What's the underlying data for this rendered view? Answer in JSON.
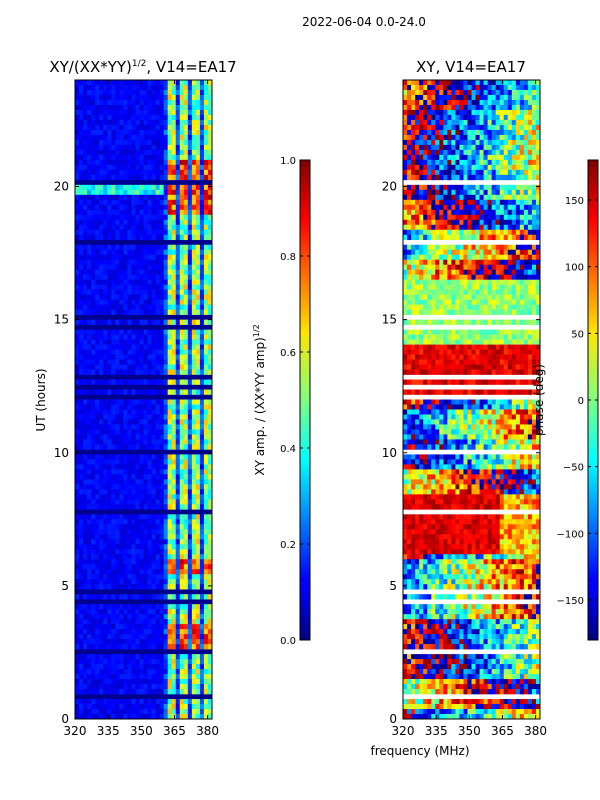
{
  "suptitle": "2022-06-04 0.0-24.0",
  "chart_data": [
    {
      "type": "heatmap",
      "title": "XY/(XX*YY)",
      "title_sup": "1/2",
      "title_suffix": ", V14=EA17",
      "xlabel": "",
      "ylabel": "UT (hours)",
      "xlim": [
        320,
        382
      ],
      "ylim": [
        0,
        24
      ],
      "xticks": [
        320,
        335,
        350,
        365,
        380
      ],
      "yticks": [
        0,
        5,
        10,
        15,
        20
      ],
      "colorbar": {
        "label": "XY amp. / (XX*YY amp)",
        "label_sup": "1/2",
        "range": [
          0.0,
          1.0
        ],
        "ticks": [
          "0.0",
          "0.2",
          "0.4",
          "0.6",
          "0.8",
          "1.0"
        ],
        "tick_values": [
          0.0,
          0.2,
          0.4,
          0.6,
          0.8,
          1.0
        ]
      },
      "active_band_mhz": [
        360,
        382
      ],
      "bright_times_hours": [
        [
          2.6,
          3.6
        ],
        [
          5.5,
          6.0
        ],
        [
          19.0,
          21.0
        ]
      ]
    },
    {
      "type": "heatmap",
      "title": "XY, V14=EA17",
      "xlabel": "frequency (MHz)",
      "ylabel": "",
      "xlim": [
        320,
        382
      ],
      "ylim": [
        0,
        24
      ],
      "xticks": [
        320,
        335,
        350,
        365,
        380
      ],
      "yticks": [
        0,
        5,
        10,
        15,
        20
      ],
      "colorbar": {
        "label": "phase (deg)",
        "range": [
          -180,
          180
        ],
        "ticks": [
          "150",
          "100",
          "50",
          "0",
          "−50",
          "−100",
          "−150"
        ],
        "tick_values": [
          150,
          100,
          50,
          0,
          -50,
          -100,
          -150
        ]
      }
    }
  ]
}
